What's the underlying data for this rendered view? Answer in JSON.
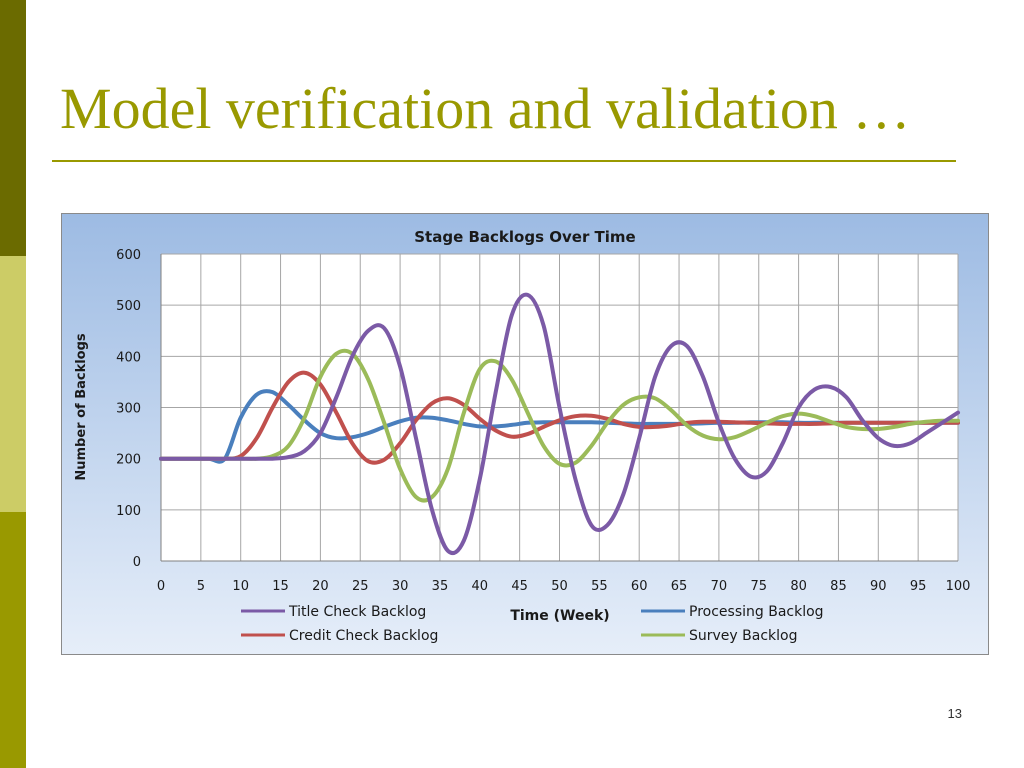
{
  "slide": {
    "title": "Model verification and validation …",
    "page_number": "13"
  },
  "chart_data": {
    "type": "line",
    "title": "Stage Backlogs Over Time",
    "xlabel": "Time (Week)",
    "ylabel": "Number of Backlogs",
    "xlim": [
      0,
      100
    ],
    "ylim": [
      0,
      600
    ],
    "xticks": [
      0,
      5,
      10,
      15,
      20,
      25,
      30,
      35,
      40,
      45,
      50,
      55,
      60,
      65,
      70,
      75,
      80,
      85,
      90,
      95,
      100
    ],
    "yticks": [
      0,
      100,
      200,
      300,
      400,
      500,
      600
    ],
    "grid": true,
    "legend_position": "bottom",
    "x": [
      0,
      2,
      4,
      6,
      8,
      10,
      12,
      14,
      16,
      18,
      20,
      22,
      24,
      26,
      28,
      30,
      32,
      34,
      36,
      38,
      40,
      42,
      44,
      46,
      48,
      50,
      52,
      54,
      56,
      58,
      60,
      62,
      64,
      66,
      68,
      70,
      72,
      74,
      76,
      78,
      80,
      82,
      84,
      86,
      88,
      90,
      92,
      94,
      96,
      98,
      100
    ],
    "series": [
      {
        "name": "Title Check Backlog",
        "color": "#7b5aa6",
        "values": [
          200,
          200,
          200,
          200,
          200,
          200,
          200,
          200,
          203,
          215,
          250,
          320,
          400,
          450,
          455,
          380,
          240,
          100,
          20,
          40,
          160,
          330,
          480,
          520,
          460,
          300,
          160,
          70,
          70,
          130,
          240,
          360,
          420,
          420,
          360,
          270,
          200,
          165,
          175,
          230,
          300,
          335,
          340,
          320,
          275,
          240,
          225,
          230,
          250,
          270,
          290
        ]
      },
      {
        "name": "Processing Backlog",
        "color": "#4a7fbd",
        "values": [
          200,
          200,
          200,
          200,
          200,
          280,
          325,
          330,
          305,
          275,
          250,
          240,
          242,
          250,
          262,
          273,
          280,
          280,
          275,
          268,
          263,
          263,
          266,
          270,
          271,
          271,
          271,
          271,
          270,
          269,
          268,
          268,
          268,
          268,
          269,
          270,
          270,
          271,
          271,
          271,
          270,
          270,
          270,
          270,
          270,
          270,
          270,
          270,
          270,
          270,
          270
        ]
      },
      {
        "name": "Credit Check Backlog",
        "color": "#c0504d",
        "values": [
          200,
          200,
          200,
          200,
          200,
          205,
          240,
          300,
          350,
          368,
          345,
          290,
          230,
          195,
          198,
          230,
          275,
          308,
          318,
          305,
          278,
          255,
          243,
          248,
          262,
          275,
          283,
          284,
          278,
          268,
          262,
          262,
          265,
          270,
          272,
          272,
          271,
          270,
          269,
          268,
          268,
          268,
          269,
          270,
          270,
          270,
          270,
          270,
          270,
          270,
          270
        ]
      },
      {
        "name": "Survey Backlog",
        "color": "#9bbb59",
        "values": [
          200,
          200,
          200,
          200,
          200,
          200,
          200,
          205,
          225,
          280,
          360,
          405,
          405,
          355,
          270,
          180,
          125,
          125,
          180,
          290,
          375,
          390,
          355,
          290,
          225,
          190,
          192,
          225,
          270,
          305,
          320,
          318,
          295,
          265,
          245,
          238,
          242,
          255,
          270,
          283,
          288,
          283,
          272,
          262,
          258,
          258,
          262,
          268,
          272,
          274,
          274
        ]
      }
    ]
  }
}
